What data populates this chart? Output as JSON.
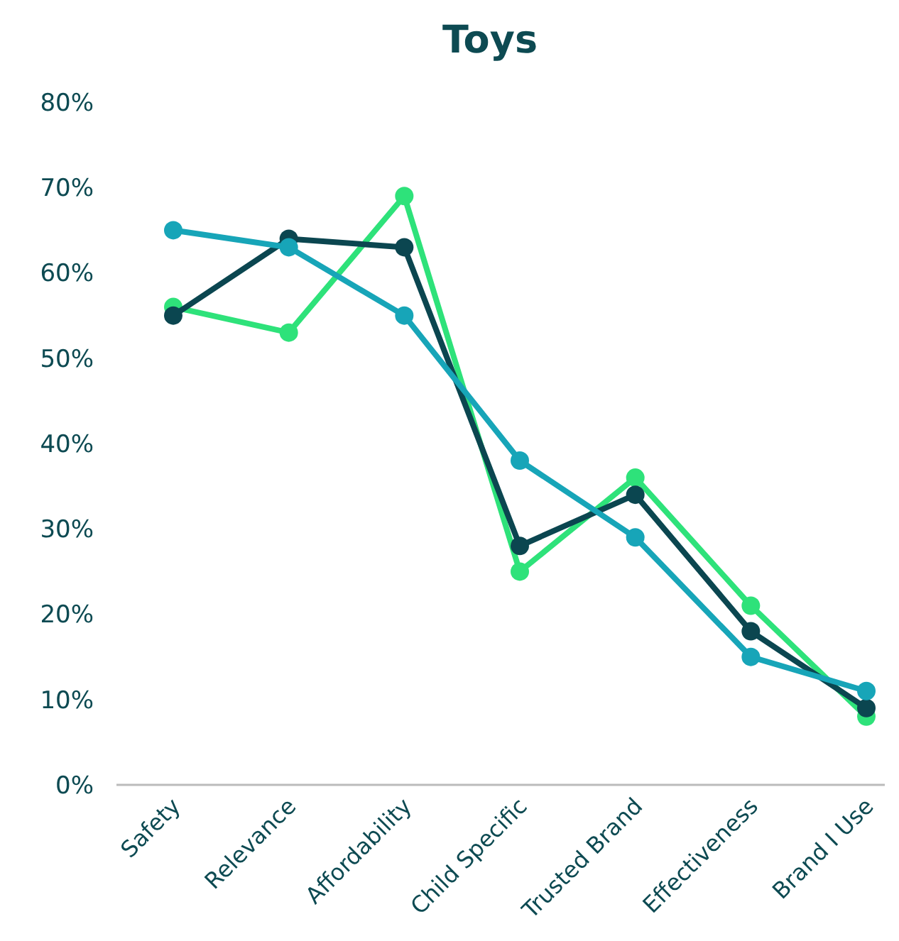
{
  "chart_data": {
    "type": "line",
    "title": "Toys",
    "categories": [
      "Safety",
      "Relevance",
      "Affordability",
      "Child Specific",
      "Trusted Brand",
      "Effectiveness",
      "Brand I Use"
    ],
    "series": [
      {
        "color": "#2ee27a",
        "values": [
          56,
          53,
          69,
          25,
          36,
          21,
          8
        ]
      },
      {
        "color": "#0b4650",
        "values": [
          55,
          64,
          63,
          28,
          34,
          18,
          9
        ]
      },
      {
        "color": "#17a5b8",
        "values": [
          65,
          63,
          55,
          38,
          29,
          15,
          11
        ]
      }
    ],
    "ylim": [
      0,
      80
    ],
    "yticks": [
      {
        "value": 0,
        "label": "0%"
      },
      {
        "value": 10,
        "label": "10%"
      },
      {
        "value": 20,
        "label": "20%"
      },
      {
        "value": 30,
        "label": "30%"
      },
      {
        "value": 40,
        "label": "40%"
      },
      {
        "value": 50,
        "label": "50%"
      },
      {
        "value": 60,
        "label": "60%"
      },
      {
        "value": 70,
        "label": "70%"
      },
      {
        "value": 80,
        "label": "80%"
      }
    ],
    "grid": false,
    "marker": "circle",
    "line_style": "solid"
  }
}
